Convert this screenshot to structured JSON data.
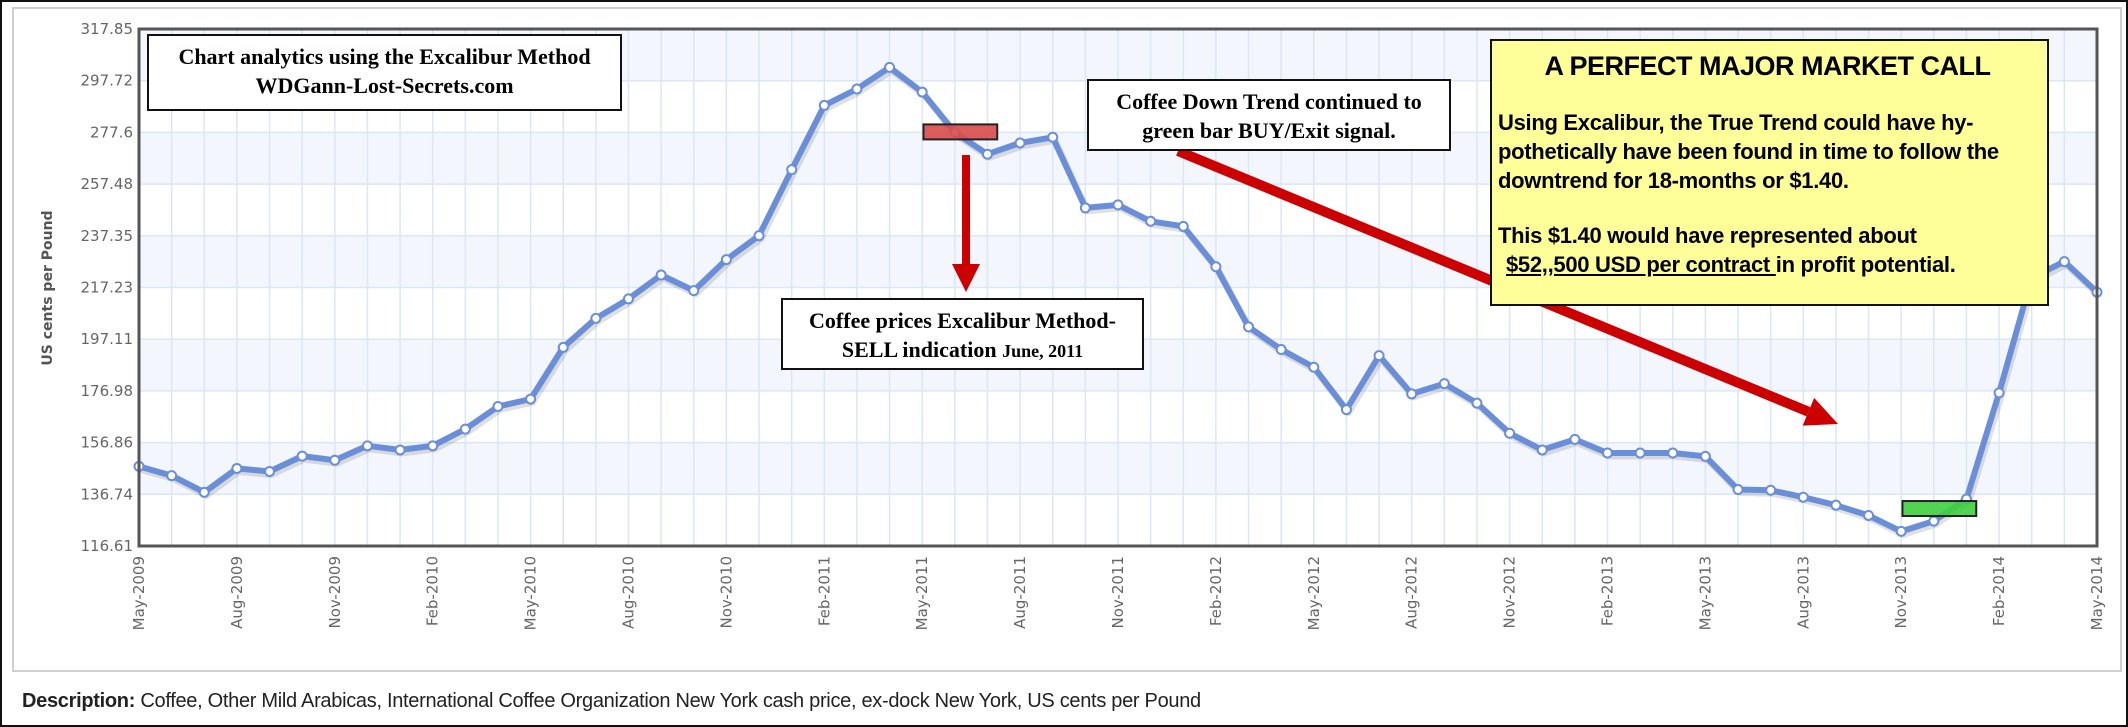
{
  "chart_data": {
    "type": "line",
    "title": "",
    "xlabel": "",
    "ylabel": "US cents per Pound",
    "ylim": [
      116.61,
      317.85
    ],
    "y_ticks": [
      "116.61",
      "136.74",
      "156.86",
      "176.98",
      "197.11",
      "217.23",
      "237.35",
      "257.48",
      "277.6",
      "297.72",
      "317.85"
    ],
    "x_tick_labels": [
      "May-2009",
      "Aug-2009",
      "Nov-2009",
      "Feb-2010",
      "May-2010",
      "Aug-2010",
      "Nov-2010",
      "Feb-2011",
      "May-2011",
      "Aug-2011",
      "Nov-2011",
      "Feb-2012",
      "May-2012",
      "Aug-2012",
      "Nov-2012",
      "Feb-2013",
      "May-2013",
      "Aug-2013",
      "Nov-2013",
      "Feb-2014",
      "May-2014"
    ],
    "grid": true,
    "legend": "none",
    "series": [
      {
        "name": "Coffee, Other Mild Arabicas",
        "color": "#6a8fd8",
        "x": [
          "May-2009",
          "Jun-2009",
          "Jul-2009",
          "Aug-2009",
          "Sep-2009",
          "Oct-2009",
          "Nov-2009",
          "Dec-2009",
          "Jan-2010",
          "Feb-2010",
          "Mar-2010",
          "Apr-2010",
          "May-2010",
          "Jun-2010",
          "Jul-2010",
          "Aug-2010",
          "Sep-2010",
          "Oct-2010",
          "Nov-2010",
          "Dec-2010",
          "Jan-2011",
          "Feb-2011",
          "Mar-2011",
          "Apr-2011",
          "May-2011",
          "Jun-2011",
          "Jul-2011",
          "Aug-2011",
          "Sep-2011",
          "Oct-2011",
          "Nov-2011",
          "Dec-2011",
          "Jan-2012",
          "Feb-2012",
          "Mar-2012",
          "Apr-2012",
          "May-2012",
          "Jun-2012",
          "Jul-2012",
          "Aug-2012",
          "Sep-2012",
          "Oct-2012",
          "Nov-2012",
          "Dec-2012",
          "Jan-2013",
          "Feb-2013",
          "Mar-2013",
          "Apr-2013",
          "May-2013",
          "Jun-2013",
          "Jul-2013",
          "Aug-2013",
          "Sep-2013",
          "Oct-2013",
          "Nov-2013",
          "Dec-2013",
          "Jan-2014",
          "Feb-2014",
          "Mar-2014",
          "Apr-2014",
          "May-2014"
        ],
        "values": [
          147.6,
          144.0,
          137.5,
          146.8,
          145.6,
          151.6,
          150.0,
          155.6,
          154.0,
          155.6,
          162.1,
          170.9,
          173.8,
          193.9,
          205.2,
          212.8,
          222.1,
          216.0,
          228.1,
          237.4,
          263.1,
          288.1,
          294.5,
          302.9,
          293.3,
          277.6,
          269.1,
          273.5,
          275.7,
          248.2,
          249.4,
          243.0,
          241.0,
          225.3,
          201.9,
          193.1,
          186.2,
          169.7,
          190.7,
          175.8,
          179.8,
          172.2,
          160.5,
          154.0,
          158.1,
          152.8,
          152.8,
          152.8,
          151.5,
          138.6,
          138.3,
          135.6,
          132.5,
          128.5,
          122.3,
          126.3,
          134.9,
          176.2,
          221.0,
          227.3,
          215.4
        ]
      }
    ],
    "markers": {
      "sell_bar": {
        "month": "Jun-2011",
        "level": 277.6,
        "color": "#d94b4b",
        "span_months": [
          "May-2011",
          "Jul-2011"
        ]
      },
      "buy_bar": {
        "month": "Dec-2013",
        "level": 131.0,
        "color": "#3fcf3f",
        "span_months": [
          "Nov-2013",
          "Jan-2014"
        ]
      }
    },
    "annotations": {
      "brand": {
        "line1": "Chart analytics using the Excalibur Method",
        "line2": "WDGann-Lost-Secrets.com"
      },
      "sell": {
        "line1": "Coffee prices Excalibur Method-",
        "line2a": "SELL indication ",
        "line2b": "June, 2011"
      },
      "trend": {
        "line1": "Coffee Down Trend continued to",
        "line2": "green bar BUY/Exit signal."
      },
      "call": {
        "title": "A PERFECT MAJOR MARKET CALL",
        "para1_line1": "Using Excalibur, the True Trend could have hy-",
        "para1_line2": "pothetically have been found in time to follow the",
        "para1_line3": "downtrend for 18-months or $1.40.",
        "para2_line1": "This $1.40 would have represented about",
        "para2_underlined": "$52,,500 USD per contract ",
        "para2_rest": "in profit potential."
      }
    },
    "arrow_color": "#cc0000"
  },
  "description": {
    "label": "Description:",
    "text": " Coffee, Other Mild Arabicas, International Coffee Organization New York cash price, ex-dock New York, US cents per Pound"
  }
}
